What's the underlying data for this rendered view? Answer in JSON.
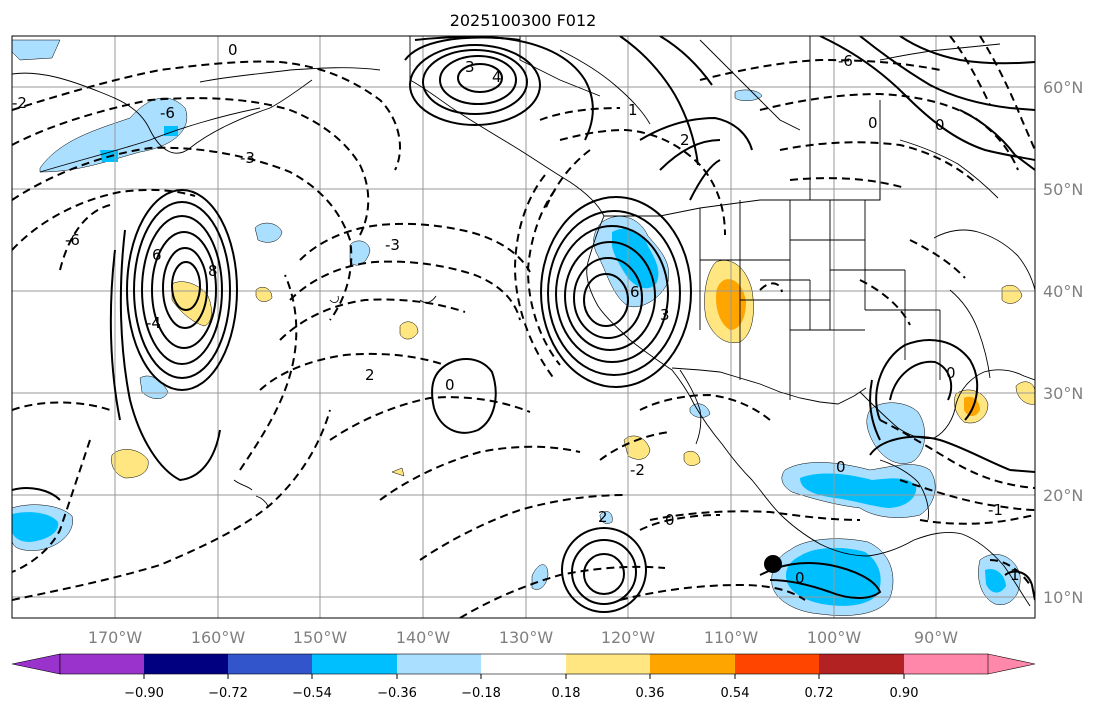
{
  "title": "2025100300 F012",
  "map": {
    "lon_labels": [
      "170°W",
      "160°W",
      "150°W",
      "140°W",
      "130°W",
      "120°W",
      "110°W",
      "100°W",
      "90°W"
    ],
    "lat_labels": [
      "60°N",
      "50°N",
      "40°N",
      "30°N",
      "20°N",
      "10°N"
    ],
    "contour_labels": [
      "0",
      "-1",
      "-2",
      "-3",
      "-4",
      "-6",
      "2",
      "3",
      "4",
      "6",
      "8",
      "1"
    ]
  },
  "colorbar": {
    "tick_labels": [
      "−0.90",
      "−0.72",
      "−0.54",
      "−0.36",
      "−0.18",
      "0.18",
      "0.36",
      "0.54",
      "0.72",
      "0.90"
    ],
    "colors": [
      "#9933cc",
      "#000080",
      "#3355cc",
      "#00bfff",
      "#aadfff",
      "#ffffff",
      "#ffe680",
      "#ffa500",
      "#ff4500",
      "#b22222",
      "#ff88aa"
    ]
  },
  "colors": {
    "shade_light_blue": "#aadfff",
    "shade_blue": "#00bfff",
    "shade_yellow": "#ffe680",
    "shade_orange": "#ffa500",
    "grid": "#999999",
    "contour": "#000000"
  }
}
